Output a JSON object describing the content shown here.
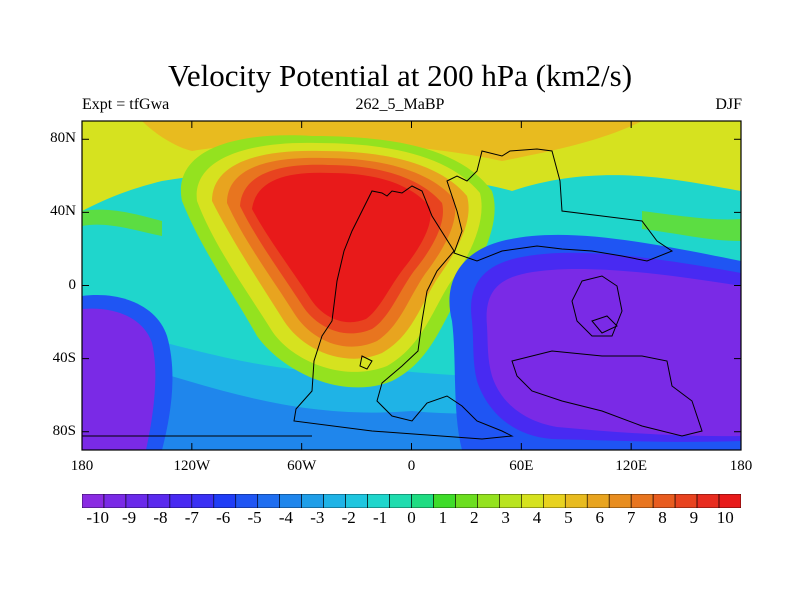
{
  "title": "Velocity Potential at 200 hPa (km2/s)",
  "left_string": "Expt = tfGwa",
  "center_string": "262_5_MaBP",
  "right_string": "DJF",
  "map": {
    "projection": "cylindrical equidistant",
    "lon_range": [
      -180,
      180
    ],
    "lat_range": [
      -90,
      90
    ],
    "lat_ticks": [
      {
        "value": 80,
        "label": "80N"
      },
      {
        "value": 40,
        "label": "40N"
      },
      {
        "value": 0,
        "label": "0"
      },
      {
        "value": -40,
        "label": "40S"
      },
      {
        "value": -80,
        "label": "80S"
      }
    ],
    "lon_ticks": [
      {
        "value": -180,
        "label": "180"
      },
      {
        "value": -120,
        "label": "120W"
      },
      {
        "value": -60,
        "label": "60W"
      },
      {
        "value": 0,
        "label": "0"
      },
      {
        "value": 60,
        "label": "60E"
      },
      {
        "value": 120,
        "label": "120E"
      },
      {
        "value": 180,
        "label": "180"
      }
    ],
    "field_centers": [
      {
        "name": "upper-level divergence center (max)",
        "lon": -45,
        "lat": 35,
        "value": 10
      },
      {
        "name": "upper-level convergence center (min)",
        "lon": 110,
        "lat": -20,
        "value": -10
      },
      {
        "name": "secondary minimum",
        "lon": -175,
        "lat": -35,
        "value": -10
      }
    ]
  },
  "colorbar": {
    "colors": [
      "#8a2be2",
      "#7a2ae6",
      "#6a2aea",
      "#5a2aee",
      "#482af2",
      "#3a30f4",
      "#1f3df6",
      "#1f55f3",
      "#1f6ef0",
      "#1f86ec",
      "#1f9ee8",
      "#1fb3e6",
      "#1fc6df",
      "#1fd6cc",
      "#1fdcae",
      "#1fdc82",
      "#3fdc2a",
      "#6cde1f",
      "#94e21f",
      "#b9e41f",
      "#d6e21f",
      "#e8d21f",
      "#e8bb1f",
      "#e8a41f",
      "#e88d1f",
      "#e8751f",
      "#e85c1f",
      "#e8431f",
      "#e82c1f",
      "#e81a1a"
    ],
    "labels": [
      "-10",
      "-9",
      "-8",
      "-7",
      "-6",
      "-5",
      "-4",
      "-3",
      "-2",
      "-1",
      "0",
      "1",
      "2",
      "3",
      "4",
      "5",
      "6",
      "7",
      "8",
      "9",
      "10"
    ],
    "min": -10.5,
    "max": 10.5
  }
}
